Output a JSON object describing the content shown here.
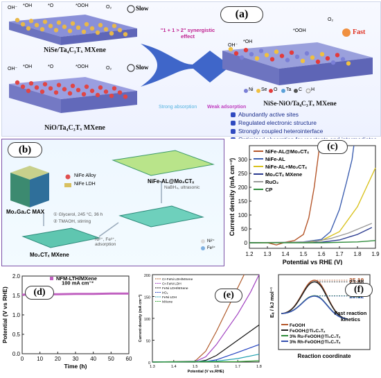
{
  "panel_a": {
    "label": "(a)",
    "top_material": "NiSe/Ta₄C₃Tₓ MXene",
    "bottom_material": "NiO/Ta₄C₃Tₓ MXene",
    "right_material": "NiSe-NiO/Ta₄C₃Tₓ MXene",
    "slow": "Slow",
    "fast": "Fast",
    "synergy": "\"1 + 1 > 2\" synergistic effect",
    "strong": "Strong absorption",
    "weak": "Weak adsorption",
    "species": [
      "OH⁻",
      "*OH",
      "*O",
      "*OOH",
      "O₂"
    ],
    "legend": [
      "Ni",
      "Se",
      "O",
      "Ta",
      "C",
      "H"
    ],
    "bullets": [
      "Abundantly active sites",
      "Regulated electronic structure",
      "Strongly coupled heterointerface",
      "Optimized absorption for reactants and intermediates"
    ],
    "colors": {
      "arrow": "#3f66c9",
      "ni": "#7a7fd6",
      "se": "#f0c040",
      "o": "#e33b3b",
      "ta": "#5aa0d8",
      "c": "#555555"
    }
  },
  "panel_b": {
    "label": "(b)",
    "max": "Mo₂Ga₂C MAX",
    "mxene": "Mo₂CTₓ MXene",
    "product": "NiFe-AL@Mo₂CTₓ",
    "legend_alloy": "NiFe Alloy",
    "legend_ldh": "NiFe LDH",
    "step1a": "① Glycerol, 245 °C, 36 h",
    "step1b": "② TMAOH, stirring",
    "step2": "Ni²⁺, Fe³⁺, adsorption",
    "step3": "NaBH₄, ultrasonic",
    "ion_ni": "Ni²⁺",
    "ion_fe": "Fe³⁺"
  },
  "chart_data": [
    {
      "panel": "(c)",
      "type": "line",
      "xlabel": "Potential vs RHE (V)",
      "ylabel": "Current density (mA cm⁻²)",
      "xlim": [
        1.2,
        1.9
      ],
      "ylim": [
        -20,
        350
      ],
      "xticks": [
        "1.2",
        "1.3",
        "1.4",
        "1.5",
        "1.6",
        "1.7",
        "1.8",
        "1.9"
      ],
      "yticks": [
        "0",
        "50",
        "100",
        "150",
        "200",
        "250",
        "300"
      ],
      "series": [
        {
          "name": "NiFe-AL@Mo₂CTₓ",
          "color": "#b5562a",
          "points": [
            [
              1.2,
              0
            ],
            [
              1.3,
              0
            ],
            [
              1.35,
              -8
            ],
            [
              1.4,
              2
            ],
            [
              1.45,
              8
            ],
            [
              1.5,
              30
            ],
            [
              1.53,
              90
            ],
            [
              1.56,
              200
            ],
            [
              1.58,
              300
            ],
            [
              1.59,
              350
            ]
          ]
        },
        {
          "name": "NiFe-AL",
          "color": "#3d5fb0",
          "points": [
            [
              1.2,
              0
            ],
            [
              1.4,
              1
            ],
            [
              1.5,
              3
            ],
            [
              1.6,
              12
            ],
            [
              1.65,
              40
            ],
            [
              1.7,
              120
            ],
            [
              1.74,
              220
            ],
            [
              1.77,
              300
            ],
            [
              1.78,
              350
            ]
          ]
        },
        {
          "name": "NiFe-AL+Mo₂CTₓ",
          "color": "#d9c21e",
          "points": [
            [
              1.2,
              0
            ],
            [
              1.5,
              1
            ],
            [
              1.6,
              8
            ],
            [
              1.7,
              40
            ],
            [
              1.8,
              130
            ],
            [
              1.85,
              200
            ],
            [
              1.9,
              270
            ]
          ]
        },
        {
          "name": "Mo₂CTₓ MXene",
          "color": "#2a3a8f",
          "points": [
            [
              1.2,
              0
            ],
            [
              1.6,
              2
            ],
            [
              1.7,
              10
            ],
            [
              1.8,
              30
            ],
            [
              1.88,
              55
            ]
          ]
        },
        {
          "name": "RuO₂",
          "color": "#999999",
          "points": [
            [
              1.2,
              0
            ],
            [
              1.55,
              3
            ],
            [
              1.65,
              15
            ],
            [
              1.75,
              35
            ],
            [
              1.88,
              70
            ]
          ]
        },
        {
          "name": "CP",
          "color": "#2e8b3a",
          "points": [
            [
              1.2,
              0
            ],
            [
              1.6,
              0
            ],
            [
              1.8,
              3
            ],
            [
              1.9,
              8
            ]
          ]
        }
      ]
    },
    {
      "panel": "(d)",
      "type": "line",
      "xlabel": "Time (h)",
      "ylabel": "Potential (V vs RHE)",
      "xlim": [
        0,
        60
      ],
      "ylim": [
        0.0,
        2.0
      ],
      "xticks": [
        "0",
        "10",
        "20",
        "30",
        "40",
        "50",
        "60"
      ],
      "yticks": [
        "0.0",
        "0.5",
        "1.0",
        "1.5",
        "2.0"
      ],
      "annotation": "100 mA cm⁻²",
      "series": [
        {
          "name": "NFM-LTH/MXene",
          "color": "#c060c0",
          "points": [
            [
              0,
              1.52
            ],
            [
              10,
              1.53
            ],
            [
              20,
              1.53
            ],
            [
              30,
              1.54
            ],
            [
              40,
              1.54
            ],
            [
              50,
              1.55
            ],
            [
              60,
              1.55
            ]
          ]
        }
      ]
    },
    {
      "panel": "(e)",
      "type": "line",
      "xlabel": "Potential (V vs.RHE)",
      "ylabel": "Current density (mA cm⁻²)",
      "xlim": [
        1.3,
        1.8
      ],
      "ylim": [
        0,
        200
      ],
      "xticks": [
        "1.3",
        "1.4",
        "1.5",
        "1.6",
        "1.7",
        "1.8"
      ],
      "yticks": [
        "0",
        "50",
        "100",
        "150",
        "200"
      ],
      "series": [
        {
          "name": "Cr-FeNi LDH/MXene",
          "color": "#b05a2a",
          "points": [
            [
              1.3,
              0
            ],
            [
              1.5,
              2
            ],
            [
              1.55,
              25
            ],
            [
              1.6,
              70
            ],
            [
              1.65,
              120
            ],
            [
              1.7,
              170
            ],
            [
              1.73,
              200
            ]
          ]
        },
        {
          "name": "Cr-FeNi LDH",
          "color": "#a040c0",
          "points": [
            [
              1.3,
              0
            ],
            [
              1.5,
              1
            ],
            [
              1.55,
              12
            ],
            [
              1.6,
              40
            ],
            [
              1.7,
              110
            ],
            [
              1.76,
              160
            ],
            [
              1.8,
              200
            ]
          ]
        },
        {
          "name": "FeNi LDH/MXene",
          "color": "#111111",
          "points": [
            [
              1.3,
              0
            ],
            [
              1.5,
              0
            ],
            [
              1.55,
              4
            ],
            [
              1.6,
              15
            ],
            [
              1.7,
              50
            ],
            [
              1.8,
              85
            ]
          ]
        },
        {
          "name": "IrO₂",
          "color": "#2040c0",
          "points": [
            [
              1.3,
              0
            ],
            [
              1.55,
              1
            ],
            [
              1.6,
              5
            ],
            [
              1.7,
              22
            ],
            [
              1.8,
              40
            ]
          ]
        },
        {
          "name": "FeNi LDH",
          "color": "#20a0b0",
          "points": [
            [
              1.3,
              0
            ],
            [
              1.6,
              2
            ],
            [
              1.7,
              8
            ],
            [
              1.8,
              18
            ]
          ]
        },
        {
          "name": "MXene",
          "color": "#30a030",
          "points": [
            [
              1.3,
              0
            ],
            [
              1.7,
              1
            ],
            [
              1.8,
              3
            ]
          ]
        }
      ]
    },
    {
      "panel": "(f)",
      "type": "line",
      "xlabel": "Reaction coordinate",
      "ylabel": "Eₐ / kJ mol⁻¹",
      "barrier_labels": [
        "25.10",
        "23.88",
        "13.37",
        "13.12"
      ],
      "annotation": "Fast reaction kinetics",
      "series": [
        {
          "name": "FeOOH",
          "color": "#b5562a",
          "barrier": 25.1
        },
        {
          "name": "FeOOH@Ti₃C₂Tₓ",
          "color": "#222222",
          "barrier": 23.88
        },
        {
          "name": "3% Ru-FeOOH@Ti₃C₂Tₓ",
          "color": "#2e8b3a",
          "barrier": 13.37
        },
        {
          "name": "3% Rh-FeOOH@Ti₃C₂Tₓ",
          "color": "#3550b0",
          "barrier": 13.12
        }
      ]
    }
  ]
}
